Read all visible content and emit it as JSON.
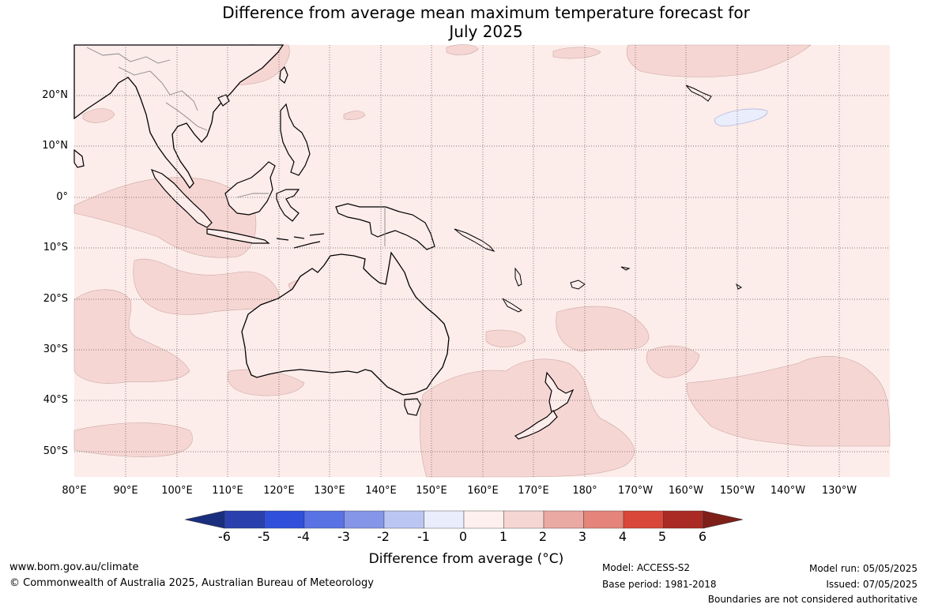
{
  "title": {
    "line1": "Difference from average mean maximum temperature forecast for",
    "line2": "July 2025"
  },
  "latitude_labels": [
    "20°N",
    "10°N",
    "0°",
    "10°S",
    "20°S",
    "30°S",
    "40°S",
    "50°S"
  ],
  "longitude_labels": [
    "80°E",
    "90°E",
    "100°E",
    "110°E",
    "120°E",
    "130°E",
    "140°E",
    "150°E",
    "160°E",
    "170°E",
    "180°",
    "170°W",
    "160°W",
    "150°W",
    "140°W",
    "130°W"
  ],
  "colorbar": {
    "ticks": [
      "-6",
      "-5",
      "-4",
      "-3",
      "-2",
      "-1",
      "0",
      "1",
      "2",
      "3",
      "4",
      "5",
      "6"
    ],
    "colors": [
      "#1a2e7e",
      "#2a41ad",
      "#3050dc",
      "#5a73e4",
      "#8596e8",
      "#bcc6f2",
      "#eaedfb",
      "#fdf0ee",
      "#f6d6d3",
      "#eaa9a2",
      "#e5847a",
      "#d9463a",
      "#aa2a24",
      "#7e2019"
    ],
    "title": "Difference from average (°C)"
  },
  "footer": {
    "url": "www.bom.gov.au/climate",
    "copyright": "© Commonwealth of Australia 2025, Australian Bureau of Meteorology",
    "model": "Model: ACCESS-S2",
    "base_period": "Base period: 1981-2018",
    "model_run": "Model run: 05/05/2025",
    "issued": "Issued: 07/05/2025",
    "disclaimer": "Boundaries are not considered authoritative"
  },
  "map_colors": {
    "background": "#fcecea",
    "anomaly_1_2": "#f6d6d3",
    "anomaly_2_3": "#f0b8b2",
    "anomaly_neg": "#eaedfb",
    "coast": "#000000",
    "border": "#888888",
    "grid": "#555555"
  }
}
